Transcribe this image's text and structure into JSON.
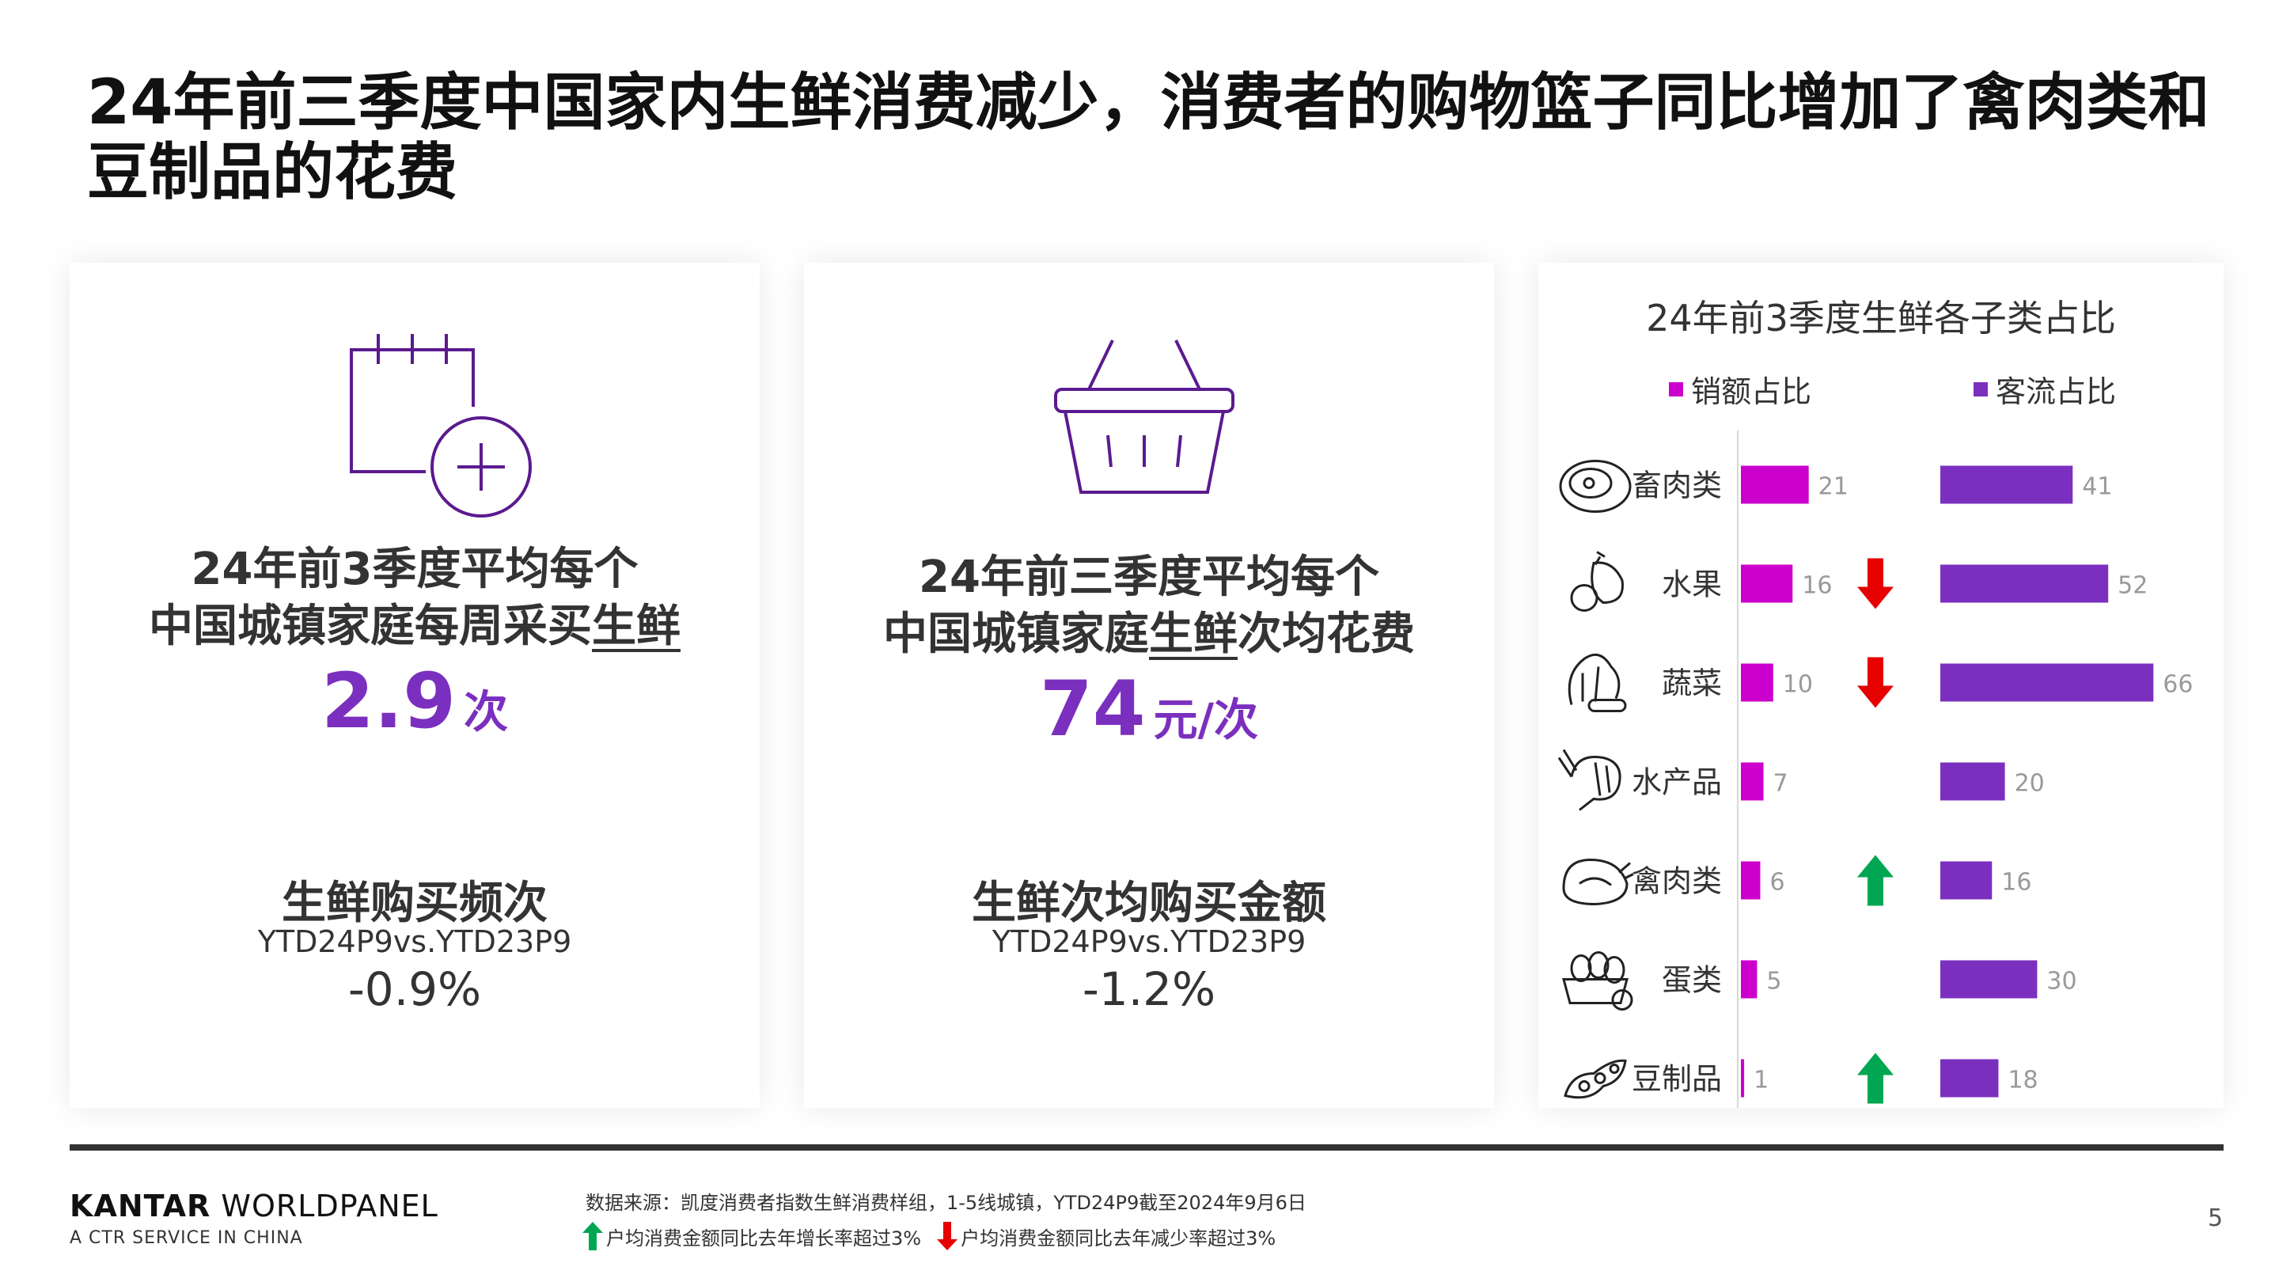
{
  "title": "24年前三季度中国家内生鲜消费减少，消费者的购物篮子同比增加了禽肉类和豆制品的花费",
  "panels": {
    "frequency": {
      "icon": "calendar-plus-icon",
      "desc_line1": "24年前3季度平均每个",
      "desc_line2_pre": "中国城镇家庭每周采买",
      "desc_line2_u": "生鲜",
      "value": "2.9",
      "unit": "次",
      "metric_name": "生鲜购买频次",
      "period": "YTD24P9vs.YTD23P9",
      "change": "-0.9%"
    },
    "spend": {
      "icon": "shopping-basket-icon",
      "desc_line1": "24年前三季度平均每个",
      "desc_line2_pre": "中国城镇家庭",
      "desc_line2_u": "生鲜",
      "desc_line2_post": "次均花费",
      "value": "74",
      "unit": "元/次",
      "metric_name": "生鲜次均购买金额",
      "period": "YTD24P9vs.YTD23P9",
      "change": "-1.2%"
    }
  },
  "chart_data": {
    "type": "bar",
    "title": "24年前3季度生鲜各子类占比",
    "categories": [
      "畜肉类",
      "水果",
      "蔬菜",
      "水产品",
      "禽肉类",
      "蛋类",
      "豆制品"
    ],
    "category_icons": [
      "steak-icon",
      "fruit-icon",
      "vegetable-icon",
      "shrimp-icon",
      "chicken-icon",
      "egg-basket-icon",
      "soybean-icon"
    ],
    "series": [
      {
        "name": "销额占比",
        "color": "#cc00cc",
        "values": [
          21,
          16,
          10,
          7,
          6,
          5,
          1
        ]
      },
      {
        "name": "客流占比",
        "color": "#7b2fbf",
        "values": [
          41,
          52,
          66,
          20,
          16,
          30,
          18
        ]
      }
    ],
    "trend": [
      "none",
      "down",
      "down",
      "none",
      "up",
      "none",
      "up"
    ],
    "legend": "top"
  },
  "colors": {
    "accent": "#7b2fbf",
    "up": "#00a651",
    "down": "#e60000"
  },
  "footer": {
    "brand_bold": "KANTAR",
    "brand_rest": " WORLDPANEL",
    "brand_sub": "A CTR SERVICE IN CHINA",
    "source": "数据来源：凯度消费者指数生鲜消费样组，1-5线城镇，YTD24P9截至2024年9月6日",
    "up_note": "户均消费金额同比去年增长率超过3%",
    "down_note": "户均消费金额同比去年减少率超过3%",
    "page": "5"
  }
}
